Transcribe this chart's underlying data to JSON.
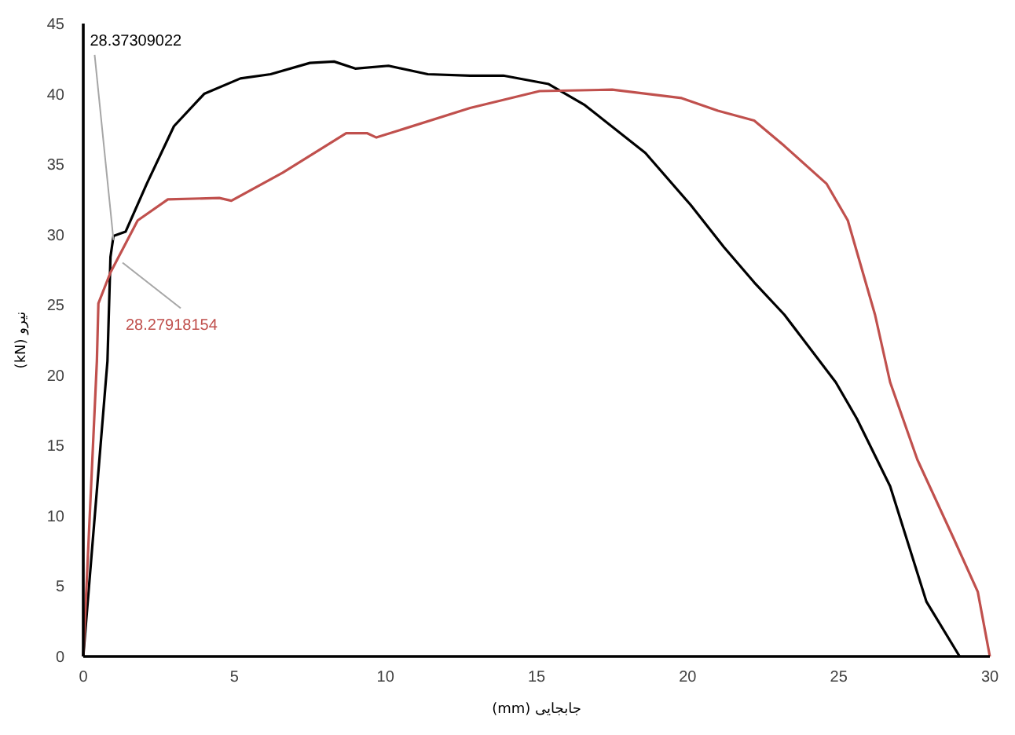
{
  "chart_data": {
    "type": "line",
    "xlabel": "جابجایی (mm)",
    "ylabel": "نیرو (kN)",
    "xlim": [
      0,
      30
    ],
    "ylim": [
      0,
      45
    ],
    "xticks": [
      0,
      5,
      10,
      15,
      20,
      25,
      30
    ],
    "yticks": [
      0,
      5,
      10,
      15,
      20,
      25,
      30,
      35,
      40,
      45
    ],
    "marker": "none",
    "line_style": "solid",
    "series": [
      {
        "color": "#000000",
        "x": [
          0,
          0.8,
          0.9,
          1.0,
          1.4,
          2.1,
          3.0,
          4.0,
          5.2,
          6.2,
          7.5,
          8.3,
          9.0,
          10.1,
          11.4,
          12.8,
          13.9,
          15.4,
          16.6,
          18.6,
          20.1,
          21.2,
          22.2,
          23.2,
          24.9,
          25.6,
          26.7,
          27.9,
          29.0
        ],
        "values": [
          0,
          21,
          28.4,
          29.9,
          30.2,
          33.6,
          37.7,
          40.0,
          41.1,
          41.4,
          42.2,
          42.3,
          41.8,
          42.0,
          41.4,
          41.3,
          41.3,
          40.7,
          39.2,
          35.8,
          32.1,
          29.1,
          26.6,
          24.3,
          19.5,
          16.9,
          12.1,
          3.9,
          0
        ]
      },
      {
        "color": "#c0504d",
        "x": [
          0,
          0.45,
          0.5,
          0.9,
          1.8,
          2.8,
          4.5,
          4.9,
          6.6,
          8.7,
          9.4,
          9.7,
          12.8,
          15.1,
          17.5,
          19.8,
          21.0,
          22.2,
          23.2,
          24.6,
          25.3,
          26.2,
          26.7,
          27.6,
          28.8,
          29.6,
          30
        ],
        "values": [
          0,
          21,
          25.1,
          27.3,
          31,
          32.5,
          32.6,
          32.4,
          34.4,
          37.2,
          37.2,
          36.9,
          39.0,
          40.2,
          40.3,
          39.7,
          38.8,
          38.1,
          36.3,
          33.6,
          31,
          24.3,
          19.5,
          14,
          8.4,
          4.6,
          0
        ]
      }
    ],
    "annotations": [
      {
        "text": "28.37309022",
        "x": 1.0,
        "y": 29.6
      },
      {
        "text": "28.27918154",
        "x": 1.3,
        "y": 28.0
      }
    ]
  }
}
